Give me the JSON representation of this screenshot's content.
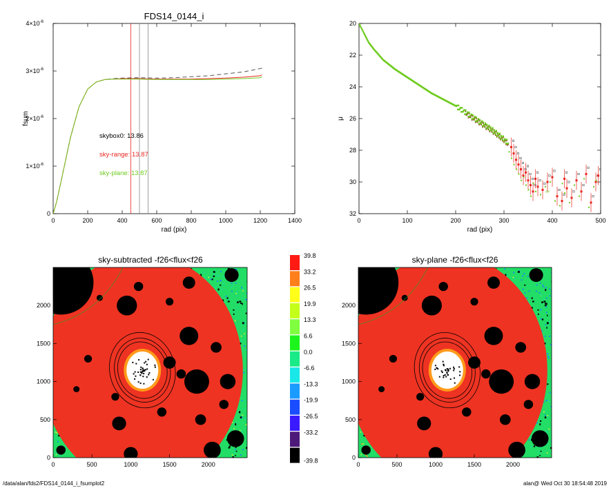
{
  "footer": {
    "path": "/data/alan/fds2/FDS14_0144_i_fsumplot2",
    "user_date": "alan@  Wed Oct 30 18:54:48 2019"
  },
  "chart_data": [
    {
      "type": "line",
      "title": "FDS14_0144_i",
      "xlabel": "rad (pix)",
      "ylabel": "fsum",
      "xlim": [
        0,
        1400
      ],
      "ylim": [
        0,
        4e-06
      ],
      "xticks": [
        "0",
        "200",
        "400",
        "600",
        "800",
        "1000",
        "1200",
        "1400"
      ],
      "yticks": [
        {
          "value": 0,
          "mantissa": "0",
          "exp": ""
        },
        {
          "value": 1e-06,
          "mantissa": "1×10",
          "exp": "-6"
        },
        {
          "value": 2e-06,
          "mantissa": "2×10",
          "exp": "-6"
        },
        {
          "value": 3e-06,
          "mantissa": "3×10",
          "exp": "-6"
        },
        {
          "value": 4e-06,
          "mantissa": "4×10",
          "exp": "-6"
        }
      ],
      "vlines": [
        {
          "x": 450,
          "color": "#e8261f"
        },
        {
          "x": 500,
          "color": "#888888"
        },
        {
          "x": 550,
          "color": "#888888"
        }
      ],
      "series": [
        {
          "color": "#555555",
          "dashed": true,
          "x": [
            0,
            20,
            50,
            100,
            150,
            200,
            250,
            300,
            350,
            400,
            500,
            600,
            700,
            800,
            900,
            1000,
            1100,
            1200,
            1210
          ],
          "y": [
            0,
            2.5e-07,
            7.5e-07,
            1.6e-06,
            2.25e-06,
            2.62e-06,
            2.77e-06,
            2.82e-06,
            2.84e-06,
            2.85e-06,
            2.86e-06,
            2.85e-06,
            2.86e-06,
            2.88e-06,
            2.9e-06,
            2.94e-06,
            2.98e-06,
            3.05e-06,
            3.06e-06
          ]
        },
        {
          "color": "#e8261f",
          "dashed": false,
          "x": [
            0,
            20,
            50,
            100,
            150,
            200,
            250,
            300,
            350,
            400,
            500,
            600,
            700,
            800,
            900,
            1000,
            1100,
            1200,
            1210
          ],
          "y": [
            0,
            2.5e-07,
            7.5e-07,
            1.6e-06,
            2.25e-06,
            2.62e-06,
            2.77e-06,
            2.82e-06,
            2.83e-06,
            2.84e-06,
            2.84e-06,
            2.83e-06,
            2.83e-06,
            2.83e-06,
            2.84e-06,
            2.85e-06,
            2.87e-06,
            2.9e-06,
            2.92e-06
          ]
        },
        {
          "color": "#6ecb1e",
          "dashed": false,
          "x": [
            0,
            20,
            50,
            100,
            150,
            200,
            250,
            300,
            350,
            400,
            500,
            600,
            700,
            800,
            900,
            1000,
            1100,
            1200,
            1210
          ],
          "y": [
            0,
            2.5e-07,
            7.5e-07,
            1.6e-06,
            2.25e-06,
            2.62e-06,
            2.77e-06,
            2.82e-06,
            2.83e-06,
            2.83e-06,
            2.83e-06,
            2.82e-06,
            2.82e-06,
            2.82e-06,
            2.82e-06,
            2.83e-06,
            2.84e-06,
            2.86e-06,
            2.88e-06
          ]
        }
      ],
      "annotations": [
        {
          "label": "skybox0: ",
          "value": "13.86",
          "color": "#000000",
          "label_color": "#000000"
        },
        {
          "label": "sky-range: ",
          "value": "13.87",
          "color": "#e8261f",
          "label_color": "#e8261f"
        },
        {
          "label": "sky-plane: ",
          "value": "13.87",
          "color": "#6ecb1e",
          "label_color": "#6ecb1e"
        }
      ]
    },
    {
      "type": "scatter",
      "title": "",
      "xlabel": "rad (pix)",
      "ylabel": "μ",
      "xlim": [
        0,
        500
      ],
      "ylim": [
        32,
        20
      ],
      "xticks": [
        "0",
        "100",
        "200",
        "300",
        "400",
        "500"
      ],
      "yticks": [
        "20",
        "22",
        "24",
        "26",
        "28",
        "30",
        "32"
      ],
      "profile": {
        "x": [
          0,
          5,
          10,
          20,
          30,
          50,
          75,
          100,
          125,
          150,
          175,
          200,
          225,
          250,
          275,
          300,
          310
        ],
        "y": [
          20.0,
          20.3,
          20.6,
          21.2,
          21.6,
          22.3,
          22.9,
          23.4,
          23.9,
          24.4,
          24.8,
          25.2,
          25.7,
          26.2,
          26.7,
          27.3,
          27.6
        ],
        "color": "#6ecb1e"
      },
      "noisy_points": {
        "x": [
          315,
          320,
          325,
          330,
          335,
          340,
          345,
          350,
          355,
          360,
          365,
          370,
          380,
          390,
          400,
          410,
          420,
          425,
          430,
          440,
          450,
          460,
          470,
          480,
          490,
          495
        ],
        "y": [
          27.8,
          28.2,
          28.6,
          28.9,
          29.2,
          29.6,
          29.4,
          29.9,
          30.2,
          30.6,
          29.8,
          30.3,
          30.5,
          30.0,
          29.7,
          30.9,
          31.2,
          29.8,
          30.4,
          31.0,
          29.9,
          30.6,
          29.5,
          31.3,
          30.0,
          29.6
        ]
      },
      "outlier_label": "##",
      "outlier_label_at": [
        386,
        30.7
      ]
    },
    {
      "type": "heatmap",
      "title": "sky-subtracted -f26<flux<f26",
      "xlim": [
        0,
        2500
      ],
      "ylim": [
        0,
        2500
      ],
      "xticks": [
        "0",
        "500",
        "1000",
        "1500",
        "2000"
      ],
      "yticks": [
        "0",
        "500",
        "1000",
        "1500",
        "2000"
      ],
      "galaxy_center": [
        1150,
        1150
      ],
      "aperture_radii": [
        300,
        340,
        400
      ],
      "masks": [
        [
          100,
          2300,
          420
        ],
        [
          950,
          2000,
          130
        ],
        [
          1100,
          2250,
          60
        ],
        [
          1750,
          2300,
          80
        ],
        [
          2300,
          2400,
          90
        ],
        [
          1750,
          1600,
          120
        ],
        [
          1500,
          1250,
          80
        ],
        [
          1650,
          1100,
          60
        ],
        [
          1850,
          1000,
          160
        ],
        [
          2250,
          1000,
          100
        ],
        [
          2100,
          1450,
          70
        ],
        [
          800,
          800,
          50
        ],
        [
          450,
          1300,
          50
        ],
        [
          1400,
          600,
          60
        ],
        [
          1900,
          500,
          70
        ],
        [
          850,
          450,
          90
        ],
        [
          2350,
          250,
          110
        ],
        [
          2050,
          100,
          110
        ],
        [
          1000,
          50,
          90
        ],
        [
          100,
          100,
          60
        ],
        [
          600,
          2100,
          40
        ],
        [
          1500,
          2050,
          50
        ],
        [
          300,
          900,
          40
        ],
        [
          2200,
          700,
          60
        ]
      ]
    },
    {
      "type": "heatmap",
      "title": "sky-plane -f26<flux<f26",
      "xlim": [
        0,
        2500
      ],
      "ylim": [
        0,
        2500
      ],
      "xticks": [
        "0",
        "500",
        "1000",
        "1500",
        "2000"
      ],
      "yticks": [
        "0",
        "500",
        "1000",
        "1500",
        "2000"
      ]
    }
  ],
  "colorbar": {
    "labels": [
      "39.8",
      "33.2",
      "26.5",
      "19.9",
      "13.3",
      "6.6",
      "0.0",
      "-6.6",
      "-13.3",
      "-19.9",
      "-26.5",
      "-33.2",
      "-39.8"
    ],
    "colors": [
      "#ff1a14",
      "#ff7f1a",
      "#ffff1a",
      "#c4ff1a",
      "#7fff40",
      "#1cf51c",
      "#1aea88",
      "#1ae7e7",
      "#1a9bff",
      "#1a4dff",
      "#3a1aff",
      "#4d1a7a",
      "#000000"
    ]
  },
  "map_palette": {
    "green": "#22dd66",
    "teal": "#1ad8a8",
    "blue": "#1a7fff",
    "yellow": "#c8f030",
    "orange": "#ff9a1a",
    "red": "#ee3322"
  }
}
